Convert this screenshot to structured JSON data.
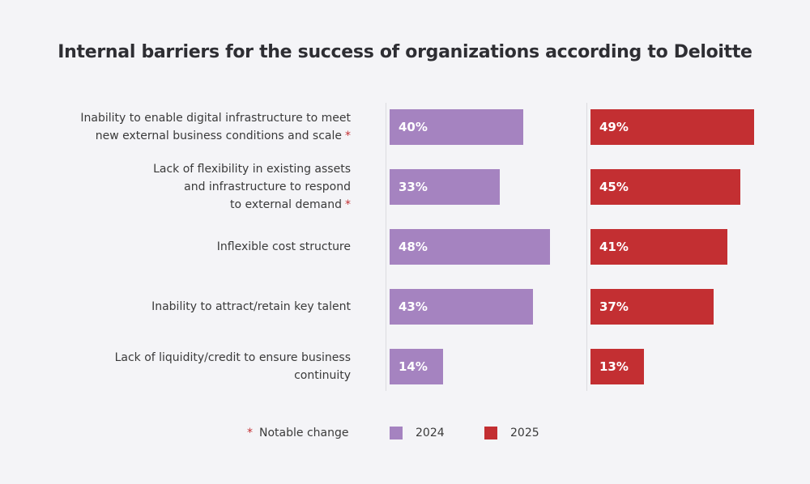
{
  "chart_data": {
    "type": "bar",
    "orientation": "horizontal",
    "title": "Internal barriers for the success of organizations according to Deloitte",
    "categories": [
      {
        "lines": [
          "Inability to enable digital infrastructure to meet",
          "new external business conditions and scale"
        ],
        "notable": true
      },
      {
        "lines": [
          "Lack of flexibility in existing assets",
          "and infrastructure to respond",
          "to external demand"
        ],
        "notable": true
      },
      {
        "lines": [
          "Inflexible cost structure"
        ],
        "notable": false
      },
      {
        "lines": [
          "Inability to attract/retain key talent"
        ],
        "notable": false
      },
      {
        "lines": [
          "Lack of liquidity/credit to ensure business",
          "continuity"
        ],
        "notable": false
      }
    ],
    "series": [
      {
        "name": "2024",
        "color": "#a583c0",
        "values": [
          40,
          33,
          48,
          43,
          14
        ],
        "labels": [
          "40%",
          "33%",
          "48%",
          "43%",
          "14%"
        ]
      },
      {
        "name": "2025",
        "color": "#c32f32",
        "values": [
          49,
          45,
          41,
          37,
          13
        ],
        "labels": [
          "49%",
          "45%",
          "41%",
          "37%",
          "13%"
        ]
      }
    ],
    "unit": "%",
    "legend": {
      "notable_marker": "*",
      "notable_label": "Notable change",
      "placement": "bottom"
    }
  }
}
